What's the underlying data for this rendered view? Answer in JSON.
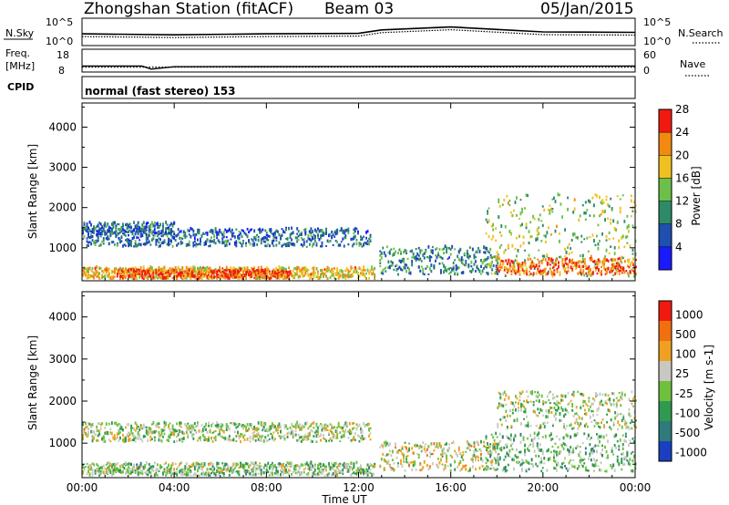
{
  "header": {
    "station": "Zhongshan Station (fitACF)",
    "beam": "Beam 03",
    "date": "05/Jan/2015"
  },
  "top_panel": {
    "left_label": "N.Sky",
    "left_ticks": [
      "10^5",
      "10^0"
    ],
    "right_label": "N.Search",
    "right_ticks": [
      "10^5",
      "10^0"
    ]
  },
  "freq_panel": {
    "label_line1": "Freq.",
    "label_line2": "[MHz]",
    "left_ticks": [
      "18",
      "8"
    ],
    "right_label": "Nave",
    "right_ticks": [
      "60",
      "0"
    ]
  },
  "cpid_panel": {
    "label": "CPID",
    "text": "normal (fast stereo) 153"
  },
  "power_panel": {
    "ylabel": "Slant Range [km]",
    "yticks": [
      "1000",
      "2000",
      "3000",
      "4000"
    ],
    "colorbar_label": "Power [dB]",
    "colorbar_ticks": [
      "4",
      "8",
      "12",
      "16",
      "20",
      "24",
      "28"
    ],
    "colors": [
      "#1a1aff",
      "#1f4fb0",
      "#2f8a6a",
      "#6cc04a",
      "#f0c020",
      "#f28a10",
      "#f21a10"
    ]
  },
  "velocity_panel": {
    "ylabel": "Slant Range [km]",
    "yticks": [
      "1000",
      "2000",
      "3000",
      "4000"
    ],
    "colorbar_label": "Velocity [m s-1]",
    "colorbar_ticks": [
      "1000",
      "500",
      "100",
      "25",
      "-25",
      "-100",
      "-500",
      "-1000"
    ],
    "colors": [
      "#1a3fc0",
      "#2f7a7a",
      "#2f9a50",
      "#70c040",
      "#c8c8c0",
      "#f0a020",
      "#f07010",
      "#f21a10"
    ]
  },
  "xaxis": {
    "label": "Time UT",
    "ticks": [
      "00:00",
      "04:00",
      "08:00",
      "12:00",
      "16:00",
      "20:00",
      "00:00"
    ]
  },
  "chart_data": {
    "type": "heatmap",
    "title": "Zhongshan Station (fitACF)   Beam 03   05/Jan/2015",
    "xlabel": "Time UT",
    "ylabel": "Slant Range [km]",
    "x_range_hours": [
      0,
      24
    ],
    "ylim_km": [
      180,
      4600
    ],
    "panels": [
      {
        "name": "Power [dB]",
        "color_scale": [
          0,
          30
        ],
        "scatter_regions": [
          {
            "t_start": 0.0,
            "t_end": 12.7,
            "range_km": [
              200,
              480
            ],
            "value": 20
          },
          {
            "t_start": 1.5,
            "t_end": 9.0,
            "range_km": [
              200,
              420
            ],
            "value": 26
          },
          {
            "t_start": 0.0,
            "t_end": 12.5,
            "range_km": [
              1000,
              1450
            ],
            "value": 8
          },
          {
            "t_start": 0.0,
            "t_end": 4.0,
            "range_km": [
              1300,
              1600
            ],
            "value": 8
          },
          {
            "t_start": 12.9,
            "t_end": 18.0,
            "range_km": [
              300,
              1000
            ],
            "value": 10
          },
          {
            "t_start": 17.5,
            "t_end": 24.0,
            "range_km": [
              250,
              2300
            ],
            "value": 16
          },
          {
            "t_start": 18.0,
            "t_end": 24.0,
            "range_km": [
              300,
              700
            ],
            "value": 25
          }
        ]
      },
      {
        "name": "Velocity [m s-1]",
        "color_scale": [
          -1000,
          1000
        ],
        "scatter_regions": [
          {
            "t_start": 0.0,
            "t_end": 12.5,
            "range_km": [
              1000,
              1450
            ],
            "value": 0
          },
          {
            "t_start": 0.0,
            "t_end": 12.7,
            "range_km": [
              200,
              500
            ],
            "value": 100
          },
          {
            "t_start": 12.9,
            "t_end": 18.0,
            "range_km": [
              300,
              1000
            ],
            "value": -100
          },
          {
            "t_start": 17.5,
            "t_end": 24.0,
            "range_km": [
              300,
              1200
            ],
            "value": 200
          },
          {
            "t_start": 18.0,
            "t_end": 24.0,
            "range_km": [
              1300,
              2200
            ],
            "value": 0
          }
        ]
      }
    ],
    "n_sky_series": [
      {
        "t": 0,
        "v": 2.2
      },
      {
        "t": 4,
        "v": 2.0
      },
      {
        "t": 8,
        "v": 2.2
      },
      {
        "t": 12,
        "v": 2.3
      },
      {
        "t": 13,
        "v": 3.0
      },
      {
        "t": 16,
        "v": 3.6
      },
      {
        "t": 18,
        "v": 3.1
      },
      {
        "t": 20,
        "v": 2.6
      },
      {
        "t": 24,
        "v": 2.5
      }
    ],
    "freq_mhz": [
      {
        "t": 0,
        "v": 10.5
      },
      {
        "t": 2.6,
        "v": 10.5
      },
      {
        "t": 3.0,
        "v": 9.0
      },
      {
        "t": 4.0,
        "v": 10.2
      },
      {
        "t": 24,
        "v": 10.5
      }
    ],
    "nave": 12
  }
}
